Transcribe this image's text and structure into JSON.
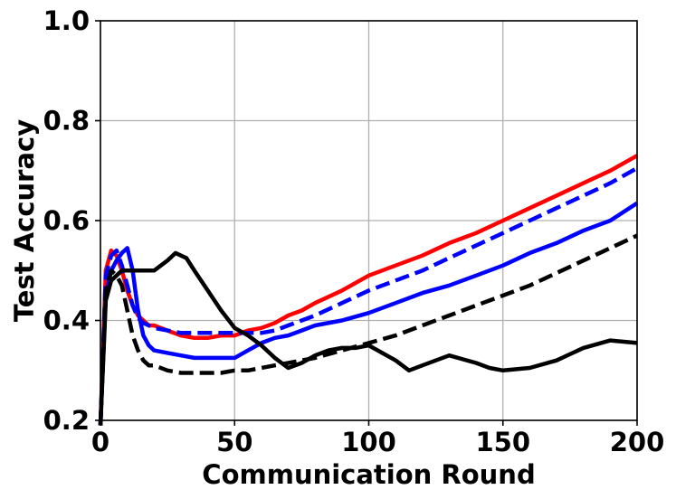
{
  "chart_data": {
    "type": "line",
    "title": "",
    "xlabel": "Communication Round",
    "ylabel": "Test Accuracy",
    "xlim": [
      0,
      200
    ],
    "ylim": [
      0.2,
      1.0
    ],
    "xticks": [
      0,
      50,
      100,
      150,
      200
    ],
    "yticks": [
      0.2,
      0.4,
      0.6,
      0.8,
      1.0
    ],
    "xtick_labels": [
      "0",
      "50",
      "100",
      "150",
      "200"
    ],
    "ytick_labels": [
      "0.2",
      "0.4",
      "0.6",
      "0.8",
      "1.0"
    ],
    "grid": true,
    "legend": "none",
    "series": [
      {
        "color": "#ff0000",
        "style": "solid",
        "x": [
          0,
          2,
          4,
          6,
          8,
          10,
          12,
          14,
          16,
          18,
          20,
          25,
          30,
          35,
          40,
          45,
          50,
          55,
          60,
          65,
          70,
          75,
          80,
          90,
          100,
          110,
          120,
          130,
          140,
          150,
          160,
          170,
          180,
          190,
          200
        ],
        "y": [
          0.19,
          0.5,
          0.54,
          0.53,
          0.5,
          0.46,
          0.43,
          0.41,
          0.4,
          0.39,
          0.39,
          0.38,
          0.37,
          0.365,
          0.365,
          0.37,
          0.37,
          0.38,
          0.385,
          0.395,
          0.41,
          0.42,
          0.435,
          0.46,
          0.49,
          0.51,
          0.53,
          0.555,
          0.575,
          0.6,
          0.625,
          0.65,
          0.675,
          0.7,
          0.73
        ]
      },
      {
        "color": "#0000ff",
        "style": "dashed",
        "x": [
          0,
          2,
          4,
          6,
          8,
          10,
          12,
          14,
          16,
          18,
          20,
          25,
          30,
          35,
          40,
          45,
          50,
          55,
          60,
          65,
          70,
          75,
          80,
          90,
          100,
          110,
          120,
          130,
          140,
          150,
          160,
          170,
          180,
          190,
          200
        ],
        "y": [
          0.19,
          0.49,
          0.53,
          0.54,
          0.51,
          0.47,
          0.43,
          0.405,
          0.395,
          0.39,
          0.385,
          0.38,
          0.375,
          0.375,
          0.375,
          0.375,
          0.375,
          0.375,
          0.375,
          0.38,
          0.39,
          0.4,
          0.41,
          0.435,
          0.46,
          0.48,
          0.5,
          0.525,
          0.55,
          0.575,
          0.6,
          0.625,
          0.65,
          0.675,
          0.705
        ]
      },
      {
        "color": "#0000ff",
        "style": "solid",
        "x": [
          0,
          2,
          4,
          6,
          8,
          10,
          12,
          14,
          16,
          18,
          20,
          25,
          30,
          35,
          40,
          45,
          50,
          55,
          60,
          65,
          70,
          75,
          80,
          90,
          100,
          110,
          120,
          130,
          140,
          150,
          160,
          170,
          180,
          190,
          200
        ],
        "y": [
          0.19,
          0.45,
          0.5,
          0.52,
          0.535,
          0.545,
          0.5,
          0.42,
          0.37,
          0.35,
          0.34,
          0.335,
          0.33,
          0.325,
          0.325,
          0.325,
          0.325,
          0.34,
          0.355,
          0.365,
          0.37,
          0.38,
          0.39,
          0.4,
          0.415,
          0.435,
          0.455,
          0.47,
          0.49,
          0.51,
          0.535,
          0.555,
          0.58,
          0.6,
          0.635
        ]
      },
      {
        "color": "#000000",
        "style": "dashed",
        "x": [
          0,
          2,
          4,
          6,
          8,
          10,
          12,
          14,
          16,
          18,
          20,
          25,
          30,
          35,
          40,
          45,
          50,
          55,
          60,
          65,
          70,
          75,
          80,
          90,
          100,
          110,
          120,
          130,
          140,
          150,
          160,
          170,
          180,
          190,
          200
        ],
        "y": [
          0.19,
          0.46,
          0.5,
          0.49,
          0.47,
          0.42,
          0.37,
          0.34,
          0.32,
          0.31,
          0.31,
          0.3,
          0.295,
          0.295,
          0.295,
          0.295,
          0.3,
          0.3,
          0.305,
          0.31,
          0.315,
          0.32,
          0.325,
          0.34,
          0.355,
          0.37,
          0.39,
          0.41,
          0.43,
          0.45,
          0.47,
          0.495,
          0.52,
          0.545,
          0.57
        ]
      },
      {
        "color": "#000000",
        "style": "solid",
        "x": [
          0,
          2,
          4,
          6,
          8,
          10,
          15,
          20,
          25,
          28,
          32,
          35,
          40,
          45,
          50,
          55,
          60,
          65,
          70,
          75,
          80,
          85,
          90,
          95,
          100,
          110,
          115,
          120,
          130,
          140,
          145,
          150,
          160,
          170,
          180,
          190,
          200
        ],
        "y": [
          0.19,
          0.44,
          0.48,
          0.49,
          0.5,
          0.5,
          0.5,
          0.5,
          0.52,
          0.535,
          0.525,
          0.5,
          0.46,
          0.42,
          0.385,
          0.37,
          0.35,
          0.325,
          0.305,
          0.315,
          0.33,
          0.34,
          0.345,
          0.345,
          0.35,
          0.32,
          0.3,
          0.31,
          0.33,
          0.315,
          0.305,
          0.3,
          0.305,
          0.32,
          0.345,
          0.36,
          0.355
        ]
      }
    ]
  }
}
